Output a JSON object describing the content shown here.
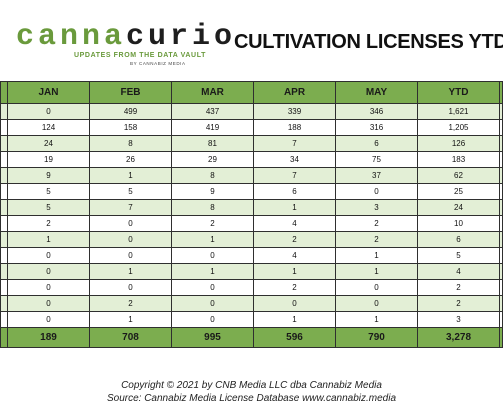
{
  "logo": {
    "word_part1": "canna",
    "word_part2": "curio",
    "tagline": "UPDATES FROM THE DATA VAULT",
    "byline": "BY CANNABIZ MEDIA"
  },
  "title": "CULTIVATION LICENSES YTD",
  "colors": {
    "header_green": "#7cad4f",
    "row_alt_green": "#e3efd6",
    "logo_green": "#6a9a3c"
  },
  "chart_data": {
    "type": "table",
    "columns": [
      "JAN",
      "FEB",
      "MAR",
      "APR",
      "MAY",
      "YTD"
    ],
    "rows": [
      [
        "0",
        "499",
        "437",
        "339",
        "346",
        "1,621"
      ],
      [
        "124",
        "158",
        "419",
        "188",
        "316",
        "1,205"
      ],
      [
        "24",
        "8",
        "81",
        "7",
        "6",
        "126"
      ],
      [
        "19",
        "26",
        "29",
        "34",
        "75",
        "183"
      ],
      [
        "9",
        "1",
        "8",
        "7",
        "37",
        "62"
      ],
      [
        "5",
        "5",
        "9",
        "6",
        "0",
        "25"
      ],
      [
        "5",
        "7",
        "8",
        "1",
        "3",
        "24"
      ],
      [
        "2",
        "0",
        "2",
        "4",
        "2",
        "10"
      ],
      [
        "1",
        "0",
        "1",
        "2",
        "2",
        "6"
      ],
      [
        "0",
        "0",
        "0",
        "4",
        "1",
        "5"
      ],
      [
        "0",
        "1",
        "1",
        "1",
        "1",
        "4"
      ],
      [
        "0",
        "0",
        "0",
        "2",
        "0",
        "2"
      ],
      [
        "0",
        "2",
        "0",
        "0",
        "0",
        "2"
      ],
      [
        "0",
        "1",
        "0",
        "1",
        "1",
        "3"
      ]
    ],
    "totals": [
      "189",
      "708",
      "995",
      "596",
      "790",
      "3,278"
    ]
  },
  "footer": {
    "line1": "Copyright © 2021 by CNB Media LLC dba Cannabiz Media",
    "line2": "Source: Cannabiz Media License Database www.cannabiz.media"
  }
}
